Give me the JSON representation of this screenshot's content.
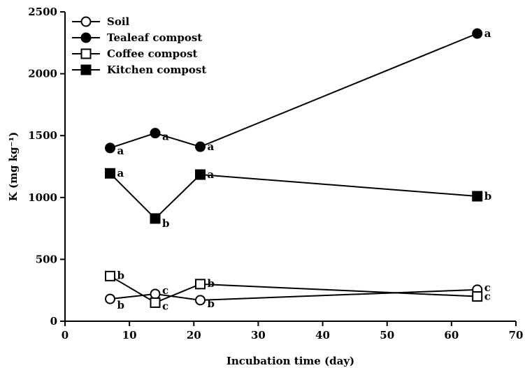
{
  "chart_data": {
    "type": "line",
    "xlabel": "Incubation time (day)",
    "ylabel": "K (mg kg⁻¹)",
    "xlim": [
      0,
      70
    ],
    "ylim": [
      0,
      2500
    ],
    "xticks": [
      0,
      10,
      20,
      30,
      40,
      50,
      60,
      70
    ],
    "yticks": [
      0,
      500,
      1000,
      1500,
      2000,
      2500
    ],
    "grid": false,
    "legend_position": "top-left",
    "series": [
      {
        "name": "Soil",
        "marker": "circle-open",
        "x": [
          7,
          14,
          21,
          64
        ],
        "y": [
          180,
          220,
          170,
          255
        ],
        "labels": [
          "b",
          "c",
          "b",
          "c"
        ]
      },
      {
        "name": "Tealeaf compost",
        "marker": "circle-filled",
        "x": [
          7,
          14,
          21,
          64
        ],
        "y": [
          1400,
          1520,
          1410,
          2325
        ],
        "labels": [
          "a",
          "a",
          "a",
          "a"
        ]
      },
      {
        "name": "Coffee compost",
        "marker": "square-open",
        "x": [
          7,
          14,
          21,
          64
        ],
        "y": [
          365,
          150,
          300,
          200
        ],
        "labels": [
          "b",
          "c",
          "b",
          "c"
        ]
      },
      {
        "name": "Kitchen compost",
        "marker": "square-filled",
        "x": [
          7,
          14,
          21,
          64
        ],
        "y": [
          1195,
          830,
          1185,
          1010
        ],
        "labels": [
          "a",
          "b",
          "a",
          "b"
        ]
      }
    ]
  }
}
